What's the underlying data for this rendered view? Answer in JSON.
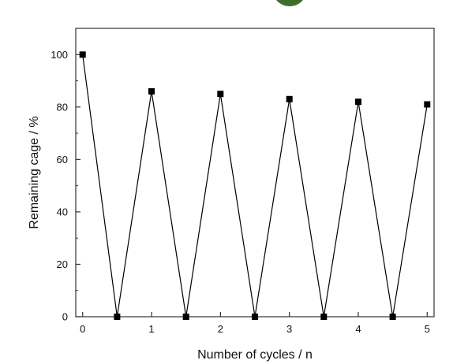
{
  "chart_data": {
    "type": "line",
    "xlabel": "Number of cycles / n",
    "ylabel": "Remaining cage / %",
    "xlim": [
      -0.1,
      5.1
    ],
    "ylim": [
      0,
      110
    ],
    "x_ticks": [
      0,
      1,
      2,
      3,
      4,
      5
    ],
    "y_ticks": [
      0,
      20,
      40,
      60,
      80,
      100
    ],
    "grid": false,
    "marker": "square",
    "line_color": "#000000",
    "marker_color": "#000000",
    "series": [
      {
        "x": [
          0,
          0.5,
          1,
          1.5,
          2,
          2.5,
          3,
          3.5,
          4,
          4.5,
          5
        ],
        "y": [
          100,
          0,
          86,
          0,
          85,
          0,
          83,
          0,
          82,
          0,
          81
        ]
      }
    ]
  }
}
